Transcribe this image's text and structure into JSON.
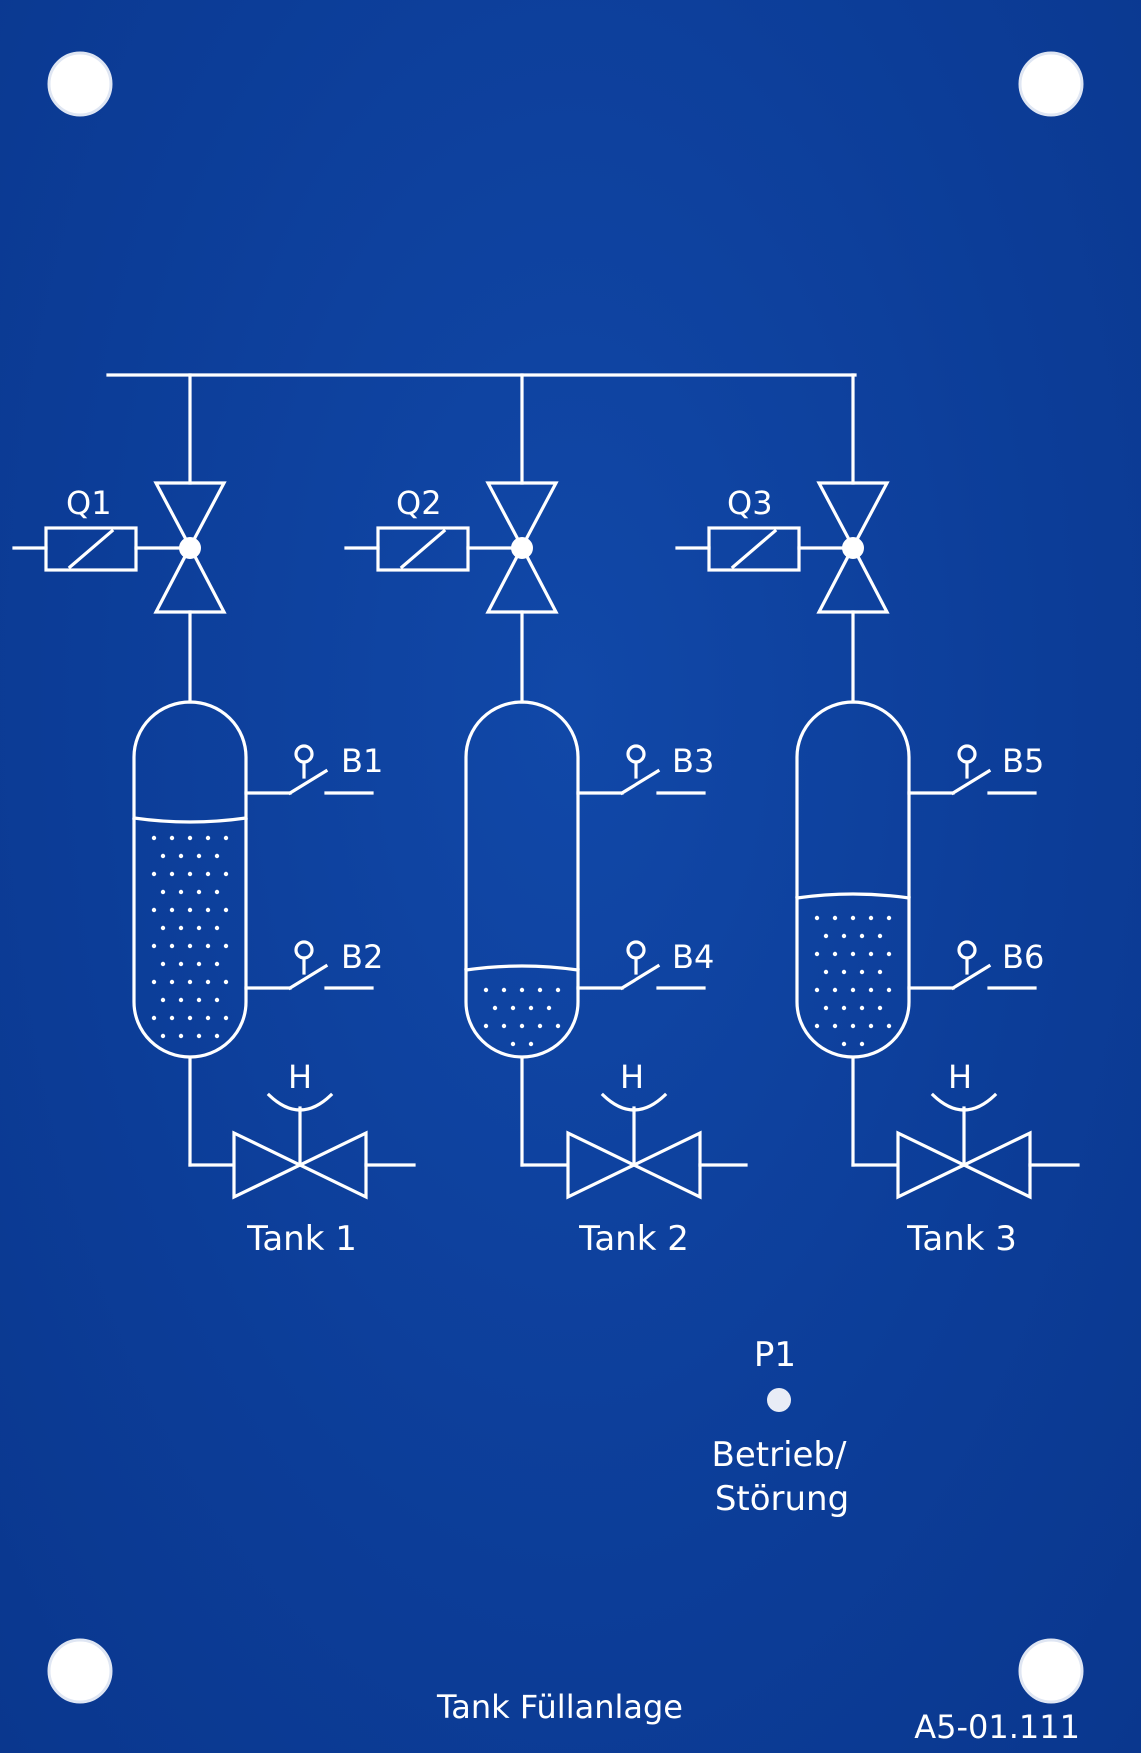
{
  "colors": {
    "panel": "#0d3f99",
    "line": "#ffffff"
  },
  "valves": [
    {
      "label": "Q1"
    },
    {
      "label": "Q2"
    },
    {
      "label": "Q3"
    }
  ],
  "sensors": [
    {
      "label": "B1"
    },
    {
      "label": "B2"
    },
    {
      "label": "B3"
    },
    {
      "label": "B4"
    },
    {
      "label": "B5"
    },
    {
      "label": "B6"
    }
  ],
  "tanks": [
    {
      "label": "Tank 1",
      "fill_level": 0.68,
      "hand_label": "H"
    },
    {
      "label": "Tank 2",
      "fill_level": 0.22,
      "hand_label": "H"
    },
    {
      "label": "Tank 3",
      "fill_level": 0.45,
      "hand_label": "H"
    }
  ],
  "lamp": {
    "label": "P1",
    "caption_line1": "Betrieb/",
    "caption_line2": "Störung"
  },
  "footer": {
    "title": "Tank Füllanlage",
    "part_number": "A5-01.111"
  }
}
